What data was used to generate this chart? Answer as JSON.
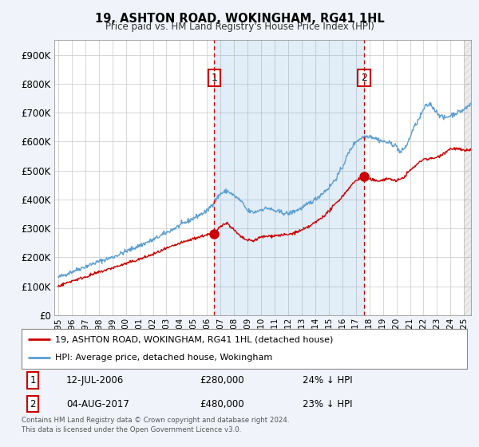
{
  "title": "19, ASHTON ROAD, WOKINGHAM, RG41 1HL",
  "subtitle": "Price paid vs. HM Land Registry's House Price Index (HPI)",
  "ytick_values": [
    0,
    100000,
    200000,
    300000,
    400000,
    500000,
    600000,
    700000,
    800000,
    900000
  ],
  "ylim": [
    0,
    950000
  ],
  "xlim_start": 1994.7,
  "xlim_end": 2025.5,
  "hpi_color": "#5b9fd4",
  "hpi_fill_color": "#d0e8f5",
  "price_color": "#cc0000",
  "vline_color": "#cc0000",
  "marker_color": "#cc0000",
  "background_color": "#f0f4fa",
  "plot_bg_color": "#ffffff",
  "grid_color": "#c8c8c8",
  "transaction1_x": 2006.53,
  "transaction1_y": 280000,
  "transaction2_x": 2017.6,
  "transaction2_y": 480000,
  "legend_line1": "19, ASHTON ROAD, WOKINGHAM, RG41 1HL (detached house)",
  "legend_line2": "HPI: Average price, detached house, Wokingham",
  "table_row1_num": "1",
  "table_row1_date": "12-JUL-2006",
  "table_row1_price": "£280,000",
  "table_row1_hpi": "24% ↓ HPI",
  "table_row2_num": "2",
  "table_row2_date": "04-AUG-2017",
  "table_row2_price": "£480,000",
  "table_row2_hpi": "23% ↓ HPI",
  "footnote": "Contains HM Land Registry data © Crown copyright and database right 2024.\nThis data is licensed under the Open Government Licence v3.0.",
  "xlabel_years": [
    1995,
    1996,
    1997,
    1998,
    1999,
    2000,
    2001,
    2002,
    2003,
    2004,
    2005,
    2006,
    2007,
    2008,
    2009,
    2010,
    2011,
    2012,
    2013,
    2014,
    2015,
    2016,
    2017,
    2018,
    2019,
    2020,
    2021,
    2022,
    2023,
    2024,
    2025
  ]
}
